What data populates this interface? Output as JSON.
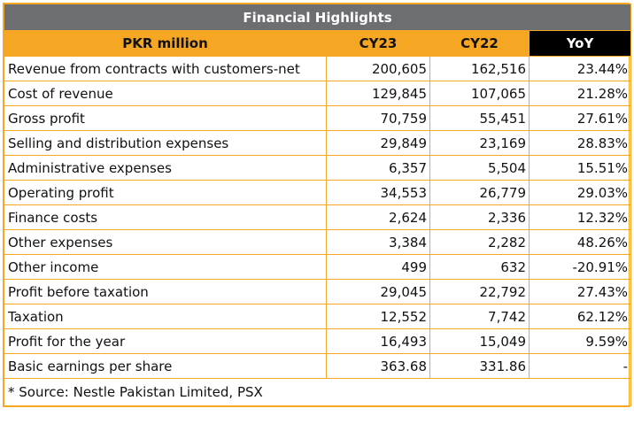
{
  "title": "Financial Highlights",
  "columns": [
    "PKR million",
    "CY23",
    "CY22",
    "YoY"
  ],
  "rows": [
    {
      "label": "Revenue from contracts with customers-net",
      "cy23": "200,605",
      "cy22": "162,516",
      "yoy": "23.44%"
    },
    {
      "label": "Cost of revenue",
      "cy23": "129,845",
      "cy22": "107,065",
      "yoy": "21.28%"
    },
    {
      "label": "Gross profit",
      "cy23": "70,759",
      "cy22": "55,451",
      "yoy": "27.61%"
    },
    {
      "label": "Selling and distribution expenses",
      "cy23": "29,849",
      "cy22": "23,169",
      "yoy": "28.83%"
    },
    {
      "label": "Administrative expenses",
      "cy23": "6,357",
      "cy22": "5,504",
      "yoy": "15.51%"
    },
    {
      "label": "Operating profit",
      "cy23": "34,553",
      "cy22": "26,779",
      "yoy": "29.03%"
    },
    {
      "label": "Finance costs",
      "cy23": "2,624",
      "cy22": "2,336",
      "yoy": "12.32%"
    },
    {
      "label": "Other expenses",
      "cy23": "3,384",
      "cy22": "2,282",
      "yoy": "48.26%"
    },
    {
      "label": "Other income",
      "cy23": "499",
      "cy22": "632",
      "yoy": "-20.91%"
    },
    {
      "label": "Profit before taxation",
      "cy23": "29,045",
      "cy22": "22,792",
      "yoy": "27.43%"
    },
    {
      "label": "Taxation",
      "cy23": "12,552",
      "cy22": "7,742",
      "yoy": "62.12%"
    },
    {
      "label": "Profit for the year",
      "cy23": "16,493",
      "cy22": "15,049",
      "yoy": "9.59%"
    },
    {
      "label": "Basic earnings per share",
      "cy23": "363.68",
      "cy22": "331.86",
      "yoy": "-"
    }
  ],
  "footer": "* Source: Nestle Pakistan Limited, PSX",
  "colors": {
    "accent": "#f5a623",
    "title_bg": "#6d6e71",
    "yoy_bg": "#000000"
  }
}
